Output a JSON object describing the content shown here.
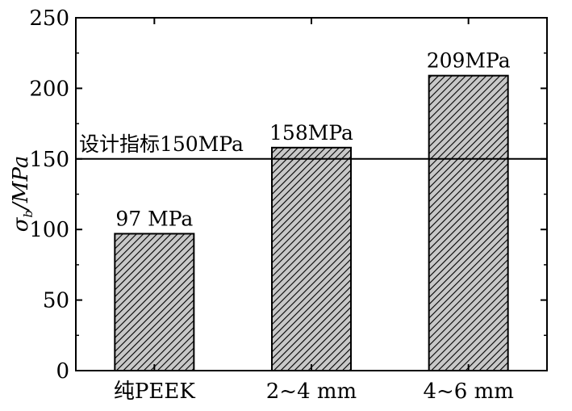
{
  "chart_data": {
    "type": "bar",
    "categories": [
      "纯PEEK",
      "2~4 mm",
      "4~6 mm"
    ],
    "values": [
      97,
      158,
      209
    ],
    "data_labels": [
      "97 MPa",
      "158MPa",
      "209MPa"
    ],
    "ylabel": {
      "symbol": "σ",
      "subscript": "b",
      "unit": "/MPa"
    },
    "ylim": [
      0,
      250
    ],
    "yticks": [
      0,
      50,
      100,
      150,
      200,
      250
    ],
    "reference_line": {
      "value": 150,
      "label": "设计指标150MPa"
    },
    "bar_fill": "hatched gray",
    "grid": false
  }
}
